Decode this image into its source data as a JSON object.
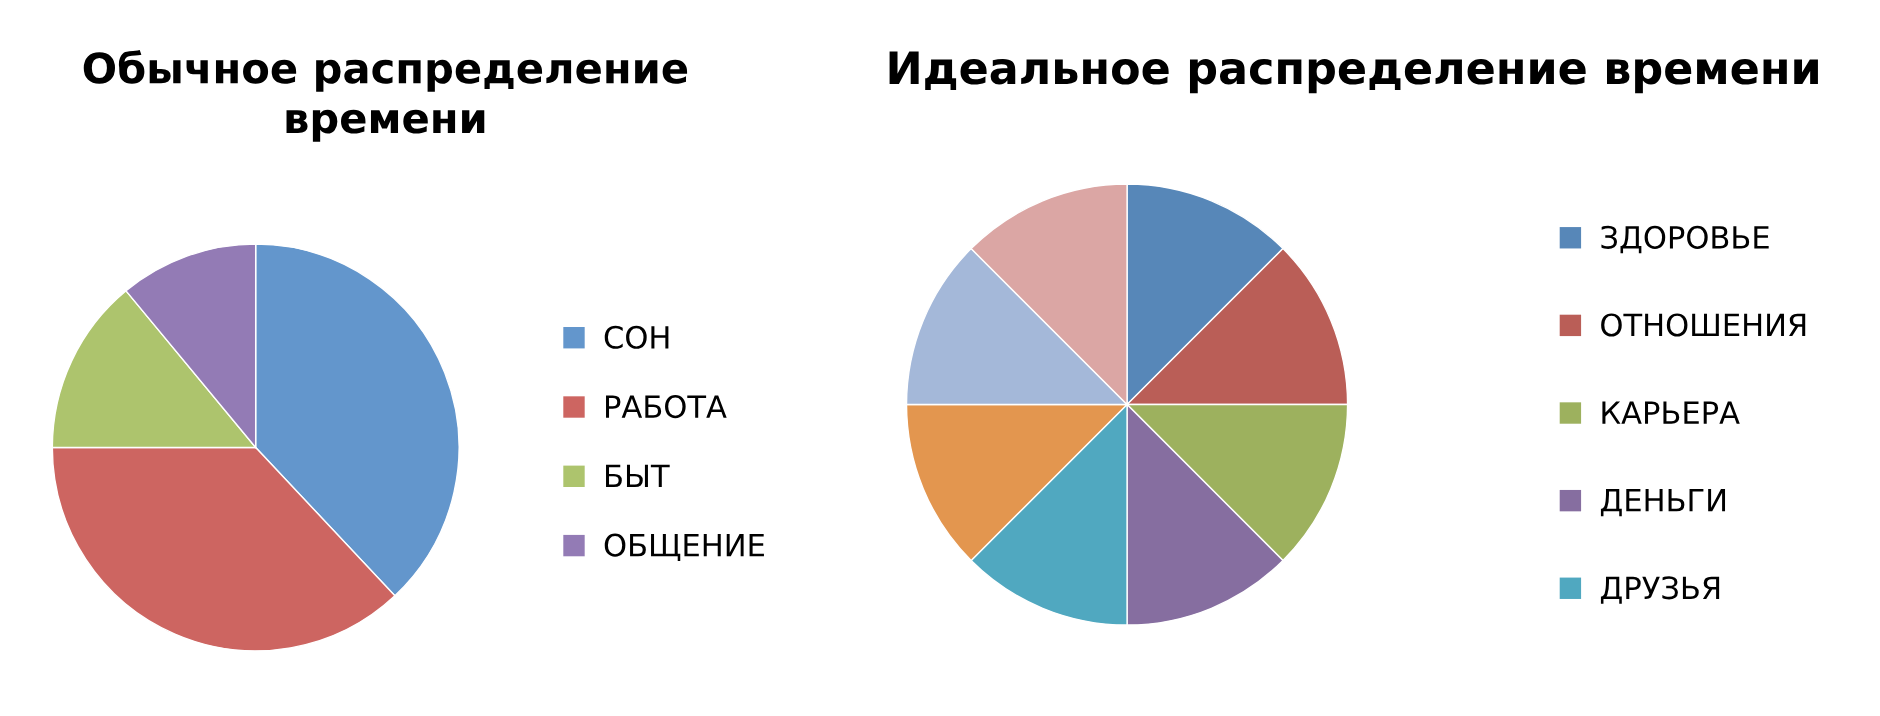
{
  "chart_data": [
    {
      "type": "pie",
      "title": "Обычное распределение времени",
      "categories": [
        "СОН",
        "РАБОТА",
        "БЫТ",
        "ОБЩЕНИЕ"
      ],
      "values": [
        38,
        37,
        14,
        11
      ],
      "colors": [
        "#6396cc",
        "#cd6561",
        "#adc46d",
        "#937bb5"
      ],
      "legend": "right"
    },
    {
      "type": "pie",
      "title": "Идеальное распределение времени",
      "categories": [
        "ЗДОРОВЬЕ",
        "ОТНОШЕНИЯ",
        "КАРЬЕРА",
        "ДЕНЬГИ",
        "ДРУЗЬЯ",
        null,
        null,
        null
      ],
      "values": [
        12.5,
        12.5,
        12.5,
        12.5,
        12.5,
        12.5,
        12.5,
        12.5
      ],
      "colors": [
        "#5787b8",
        "#ba5e57",
        "#9db15e",
        "#866ea0",
        "#50a8c0",
        "#e3964f",
        "#a4b8d9",
        "#dba6a4"
      ],
      "legend": "right"
    }
  ]
}
